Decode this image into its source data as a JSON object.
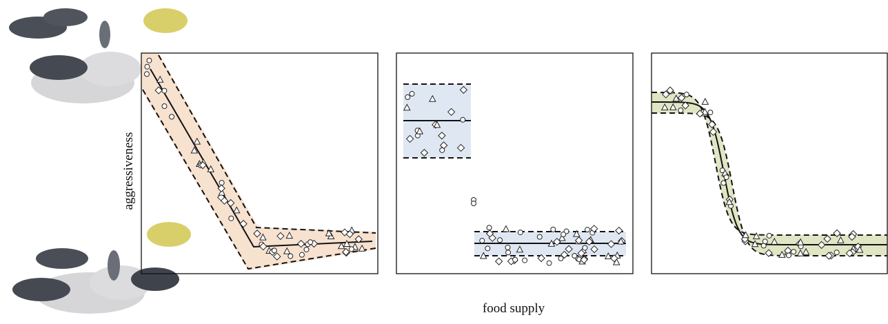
{
  "y_label": "aggressiveness",
  "x_label": "food supply"
}
